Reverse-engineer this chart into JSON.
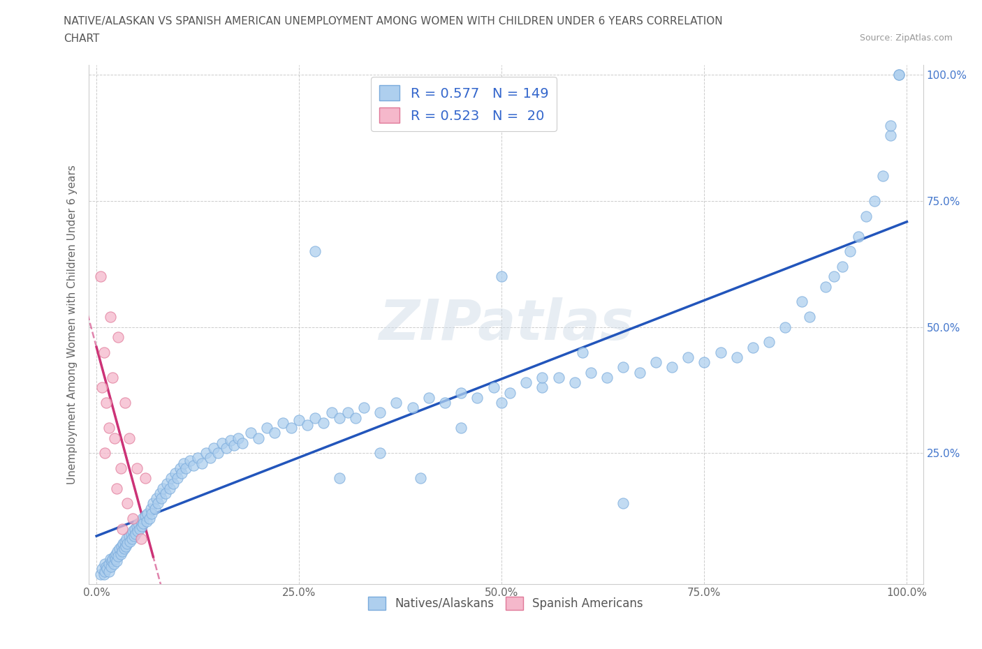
{
  "title_line1": "NATIVE/ALASKAN VS SPANISH AMERICAN UNEMPLOYMENT AMONG WOMEN WITH CHILDREN UNDER 6 YEARS CORRELATION",
  "title_line2": "CHART",
  "source": "Source: ZipAtlas.com",
  "ylabel": "Unemployment Among Women with Children Under 6 years",
  "xlim": [
    0.0,
    1.0
  ],
  "ylim": [
    0.0,
    1.0
  ],
  "xtick_labels": [
    "0.0%",
    "25.0%",
    "50.0%",
    "75.0%",
    "100.0%"
  ],
  "xtick_vals": [
    0.0,
    0.25,
    0.5,
    0.75,
    1.0
  ],
  "ytick_labels_right": [
    "100.0%",
    "75.0%",
    "50.0%",
    "25.0%"
  ],
  "ytick_vals_right": [
    1.0,
    0.75,
    0.5,
    0.25
  ],
  "native_color": "#aecfee",
  "native_edge_color": "#7aabdc",
  "spanish_color": "#f5b8cb",
  "spanish_edge_color": "#e07898",
  "native_R": 0.577,
  "native_N": 149,
  "spanish_R": 0.523,
  "spanish_N": 20,
  "native_line_color": "#2255bb",
  "spanish_line_color": "#cc3377",
  "watermark": "ZIPatlas",
  "background_color": "#ffffff",
  "grid_color": "#cccccc",
  "legend_label_native": "Natives/Alaskans",
  "legend_label_spanish": "Spanish Americans",
  "native_x": [
    0.005,
    0.007,
    0.009,
    0.01,
    0.01,
    0.012,
    0.013,
    0.015,
    0.015,
    0.017,
    0.018,
    0.019,
    0.02,
    0.021,
    0.022,
    0.023,
    0.024,
    0.025,
    0.026,
    0.027,
    0.028,
    0.03,
    0.031,
    0.032,
    0.033,
    0.034,
    0.035,
    0.036,
    0.037,
    0.038,
    0.04,
    0.041,
    0.043,
    0.044,
    0.045,
    0.046,
    0.047,
    0.048,
    0.05,
    0.051,
    0.052,
    0.053,
    0.055,
    0.056,
    0.057,
    0.058,
    0.06,
    0.062,
    0.063,
    0.065,
    0.067,
    0.068,
    0.07,
    0.072,
    0.074,
    0.076,
    0.078,
    0.08,
    0.082,
    0.085,
    0.087,
    0.09,
    0.092,
    0.095,
    0.097,
    0.1,
    0.103,
    0.105,
    0.108,
    0.11,
    0.115,
    0.12,
    0.125,
    0.13,
    0.135,
    0.14,
    0.145,
    0.15,
    0.155,
    0.16,
    0.165,
    0.17,
    0.175,
    0.18,
    0.19,
    0.2,
    0.21,
    0.22,
    0.23,
    0.24,
    0.25,
    0.26,
    0.27,
    0.28,
    0.29,
    0.3,
    0.31,
    0.32,
    0.33,
    0.35,
    0.37,
    0.39,
    0.41,
    0.43,
    0.45,
    0.47,
    0.49,
    0.51,
    0.53,
    0.55,
    0.57,
    0.59,
    0.61,
    0.63,
    0.65,
    0.67,
    0.69,
    0.71,
    0.73,
    0.75,
    0.77,
    0.79,
    0.81,
    0.83,
    0.85,
    0.87,
    0.88,
    0.9,
    0.91,
    0.92,
    0.93,
    0.94,
    0.95,
    0.96,
    0.97,
    0.98,
    0.98,
    0.99,
    0.99,
    0.5,
    0.27,
    0.3,
    0.35,
    0.4,
    0.45,
    0.5,
    0.55,
    0.6,
    0.65
  ],
  "native_y": [
    0.01,
    0.02,
    0.01,
    0.03,
    0.015,
    0.025,
    0.02,
    0.03,
    0.015,
    0.04,
    0.025,
    0.035,
    0.04,
    0.03,
    0.045,
    0.04,
    0.05,
    0.035,
    0.055,
    0.045,
    0.06,
    0.05,
    0.065,
    0.055,
    0.07,
    0.06,
    0.075,
    0.065,
    0.08,
    0.07,
    0.085,
    0.075,
    0.09,
    0.08,
    0.095,
    0.085,
    0.1,
    0.09,
    0.105,
    0.095,
    0.11,
    0.1,
    0.115,
    0.105,
    0.12,
    0.11,
    0.125,
    0.115,
    0.13,
    0.12,
    0.14,
    0.13,
    0.15,
    0.14,
    0.16,
    0.15,
    0.17,
    0.16,
    0.18,
    0.17,
    0.19,
    0.18,
    0.2,
    0.19,
    0.21,
    0.2,
    0.22,
    0.21,
    0.23,
    0.22,
    0.235,
    0.225,
    0.24,
    0.23,
    0.25,
    0.24,
    0.26,
    0.25,
    0.27,
    0.26,
    0.275,
    0.265,
    0.28,
    0.27,
    0.29,
    0.28,
    0.3,
    0.29,
    0.31,
    0.3,
    0.315,
    0.305,
    0.32,
    0.31,
    0.33,
    0.32,
    0.33,
    0.32,
    0.34,
    0.33,
    0.35,
    0.34,
    0.36,
    0.35,
    0.37,
    0.36,
    0.38,
    0.37,
    0.39,
    0.38,
    0.4,
    0.39,
    0.41,
    0.4,
    0.42,
    0.41,
    0.43,
    0.42,
    0.44,
    0.43,
    0.45,
    0.44,
    0.46,
    0.47,
    0.5,
    0.55,
    0.52,
    0.58,
    0.6,
    0.62,
    0.65,
    0.68,
    0.72,
    0.75,
    0.8,
    0.88,
    0.9,
    1.0,
    1.0,
    0.6,
    0.65,
    0.2,
    0.25,
    0.2,
    0.3,
    0.35,
    0.4,
    0.45,
    0.15
  ],
  "spanish_x": [
    0.005,
    0.007,
    0.009,
    0.01,
    0.012,
    0.015,
    0.017,
    0.02,
    0.022,
    0.025,
    0.027,
    0.03,
    0.032,
    0.035,
    0.038,
    0.04,
    0.045,
    0.05,
    0.055,
    0.06
  ],
  "spanish_y": [
    0.6,
    0.38,
    0.45,
    0.25,
    0.35,
    0.3,
    0.52,
    0.4,
    0.28,
    0.18,
    0.48,
    0.22,
    0.1,
    0.35,
    0.15,
    0.28,
    0.12,
    0.22,
    0.08,
    0.2
  ]
}
